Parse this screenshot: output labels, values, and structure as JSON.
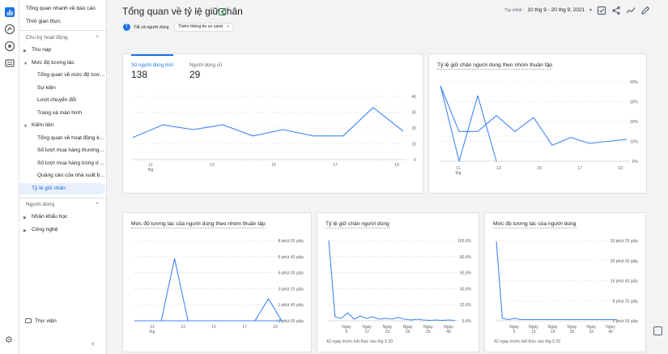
{
  "sidebar": {
    "items": [
      {
        "label": "Tổng quan nhanh về báo cáo",
        "type": "link"
      },
      {
        "label": "Thời gian thực",
        "type": "link"
      }
    ],
    "lifecycle": {
      "label": "Chu kỳ hoạt động",
      "items": [
        {
          "label": "Thu nạp",
          "type": "group"
        },
        {
          "label": "Mức độ tương tác",
          "type": "group"
        },
        {
          "label": "Tổng quan về mức độ tương tác",
          "type": "sub"
        },
        {
          "label": "Sự kiện",
          "type": "sub"
        },
        {
          "label": "Lượt chuyển đổi",
          "type": "sub"
        },
        {
          "label": "Trang và màn hình",
          "type": "sub"
        },
        {
          "label": "Kiếm tiền",
          "type": "group"
        },
        {
          "label": "Tổng quan về hoạt động kiếm tiền",
          "type": "sub"
        },
        {
          "label": "Số lượt mua hàng thương mại điện tử",
          "type": "sub"
        },
        {
          "label": "Số lượt mua hàng trong ứng dụng",
          "type": "sub"
        },
        {
          "label": "Quảng cáo của nhà xuất bản",
          "type": "sub"
        },
        {
          "label": "Tỷ lệ giữ chân",
          "type": "active"
        }
      ]
    },
    "user": {
      "label": "Người dùng",
      "items": [
        {
          "label": "Nhân khẩu học"
        },
        {
          "label": "Công nghệ"
        }
      ]
    },
    "library": "Thư viện"
  },
  "header": {
    "title": "Tổng quan về tỷ lệ giữ chân",
    "date_label": "Tùy chỉnh",
    "date_range": "10 thg 9 - 20 thg 9, 2021",
    "chip_all_users": "Tất cả người dùng",
    "chip_compare": "Thêm thông tin so sánh",
    "chip_all_users_badge": "T"
  },
  "cards": {
    "users": {
      "tabs": [
        {
          "label": "Số người dùng mới",
          "value": "138"
        },
        {
          "label": "Người dùng cũ",
          "value": "29"
        }
      ]
    },
    "cohort_retention": {
      "title": "Tỷ lệ giữ chân người dùng theo nhóm thuần tập"
    },
    "cohort_engagement": {
      "title": "Mức độ tương tác của người dùng theo nhóm thuần tập"
    },
    "user_retention": {
      "title": "Tỷ lệ giữ chân người dùng",
      "note": "42 ngày trước kết thúc vào thg 9 20"
    },
    "user_engagement": {
      "title": "Mức độ tương tác của người dùng",
      "note": "42 ngày trước kết thúc vào thg 9 20"
    }
  },
  "colors": {
    "accent": "#1a73e8",
    "line": "#4285f4"
  },
  "chart_data": [
    {
      "type": "line",
      "name": "new-users",
      "x": [
        "11 thg",
        "12",
        "13",
        "14",
        "15",
        "16",
        "17",
        "18",
        "19",
        "20"
      ],
      "x_ticks": [
        "11\nthg",
        "13",
        "15",
        "17",
        "19"
      ],
      "values": [
        14,
        22,
        19,
        22,
        15,
        19,
        15,
        15,
        33,
        18
      ],
      "y_ticks": [
        "40",
        "30",
        "20",
        "10",
        "0"
      ],
      "ylim": [
        0,
        40
      ]
    },
    {
      "type": "line",
      "name": "cohort-retention",
      "x_ticks": [
        "11\nthg",
        "13",
        "15",
        "17",
        "19"
      ],
      "series": [
        {
          "values": [
            38,
            0,
            33,
            0
          ]
        },
        {
          "values": [
            38,
            15,
            15,
            23,
            15,
            22,
            8,
            12,
            9,
            10,
            11
          ]
        }
      ],
      "y_ticks": [
        "40%",
        "30%",
        "20%",
        "10%",
        "0%"
      ],
      "ylim": [
        0,
        40
      ]
    },
    {
      "type": "line",
      "name": "cohort-engagement",
      "x_ticks": [
        "11\nthg",
        "13",
        "15",
        "17",
        "19"
      ],
      "series": [
        {
          "values": [
            0,
            0,
            0,
            6.2,
            0,
            0,
            0,
            0,
            0,
            0,
            2.2,
            0
          ]
        },
        {
          "values": [
            0,
            0,
            0,
            0,
            0,
            0,
            0,
            0,
            0,
            0,
            0,
            0
          ]
        }
      ],
      "y_ticks": [
        "8 phút 00 giây",
        "6 phút 40 giây",
        "5 phút 00 giây",
        "3 phút 20 giây",
        "1 phút 40 giây",
        "0 phút 00 giây"
      ],
      "ylim": [
        0,
        8
      ]
    },
    {
      "type": "line",
      "name": "user-retention",
      "x_ticks": [
        "Ngày\n5",
        "Ngày\n12",
        "Ngày\n19",
        "Ngày\n26",
        "Ngày\n33",
        "Ngày\n40"
      ],
      "values": [
        100,
        5,
        3,
        10,
        2,
        6,
        3,
        5,
        2,
        3,
        2,
        4,
        2,
        1,
        2,
        1,
        0.5,
        1,
        0.5,
        1,
        0.5
      ],
      "y_ticks": [
        "100,0%",
        "80,0%",
        "60,0%",
        "40,0%",
        "20,0%",
        "0,0%"
      ],
      "ylim": [
        0,
        100
      ]
    },
    {
      "type": "line",
      "name": "user-engagement",
      "x_ticks": [
        "Ngày\n5",
        "Ngày\n12",
        "Ngày\n19",
        "Ngày\n26",
        "Ngày\n33",
        "Ngày\n40"
      ],
      "values": [
        33,
        1,
        0.5,
        1,
        0.5,
        0.5,
        0.5,
        0.5,
        0.5,
        0.5,
        0.5,
        0.5,
        0.5,
        0.5,
        0.5,
        0.5,
        0.5,
        0.5,
        0.5,
        0.5,
        0.5
      ],
      "y_ticks": [
        "33 phút 20 giây",
        "25 phút 00 giây",
        "16 phút 40 giây",
        "8 phút 20 giây",
        "0 phút 00 giây"
      ],
      "ylim": [
        0,
        33.3
      ]
    }
  ]
}
